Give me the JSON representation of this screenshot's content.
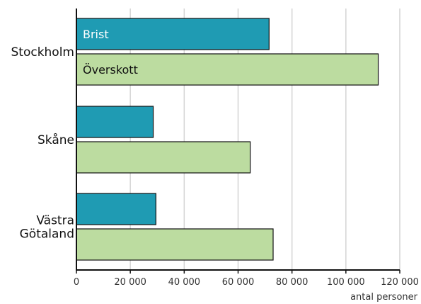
{
  "chart_data": {
    "type": "bar",
    "orientation": "horizontal",
    "categories": [
      [
        "Stockholm"
      ],
      [
        "Skåne"
      ],
      [
        "Västra",
        "Götaland"
      ]
    ],
    "series": [
      {
        "name": "Brist",
        "color": "#1f9bb3",
        "values": [
          71500,
          28500,
          29500
        ]
      },
      {
        "name": "Överskott",
        "color": "#bcdca0",
        "values": [
          112000,
          64500,
          73000
        ]
      }
    ],
    "xlim": [
      0,
      120000
    ],
    "xticks": [
      0,
      20000,
      40000,
      60000,
      80000,
      100000,
      120000
    ],
    "xtick_labels": [
      "0",
      "20 000",
      "40 000",
      "60 000",
      "80 000",
      "100 000",
      "120 000"
    ],
    "xlabel": "antal personer",
    "grid": "vertical",
    "legend": "inside-bars-top"
  }
}
